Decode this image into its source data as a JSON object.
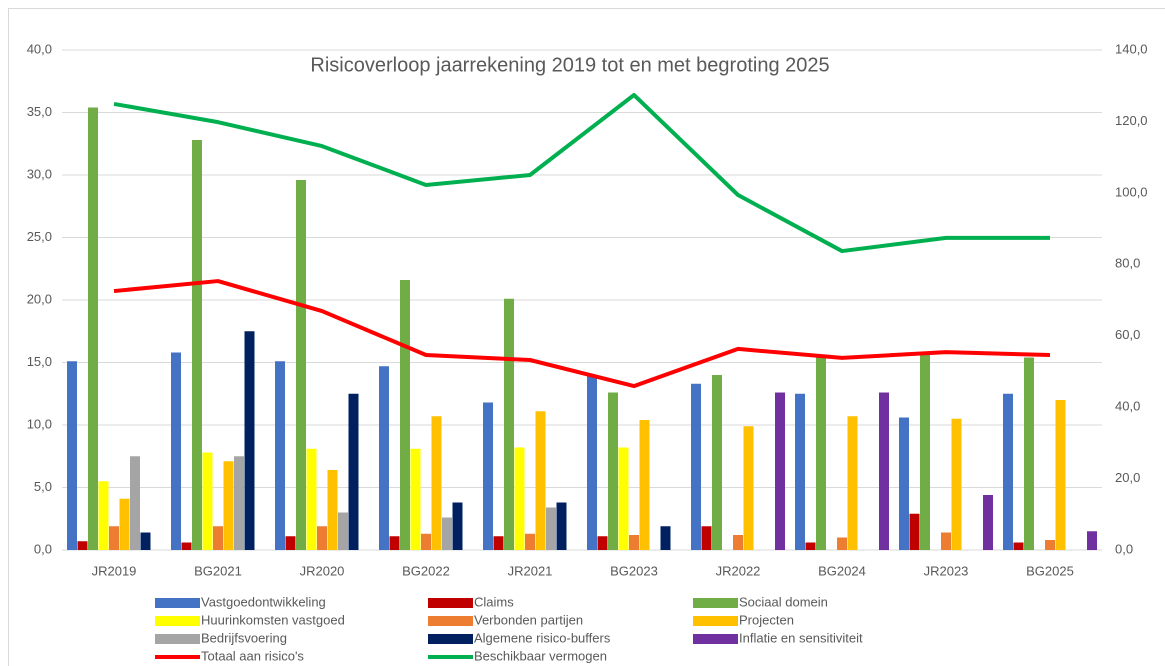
{
  "chart_data": {
    "type": "bar",
    "title": "Risicoverloop jaarrekening 2019 tot en met begroting 2025",
    "categories": [
      "JR2019",
      "BG2021",
      "JR2020",
      "BG2022",
      "JR2021",
      "BG2023",
      "JR2022",
      "BG2024",
      "JR2023",
      "BG2025"
    ],
    "ylim": [
      0,
      40
    ],
    "yticks": [
      {
        "value": 0,
        "label": "0,0"
      },
      {
        "value": 5,
        "label": "5,0"
      },
      {
        "value": 10,
        "label": "10,0"
      },
      {
        "value": 15,
        "label": "15,0"
      },
      {
        "value": 20,
        "label": "20,0"
      },
      {
        "value": 25,
        "label": "25,0"
      },
      {
        "value": 30,
        "label": "30,0"
      },
      {
        "value": 35,
        "label": "35,0"
      },
      {
        "value": 40,
        "label": "40,0"
      }
    ],
    "y2lim": [
      0,
      140
    ],
    "y2ticks": [
      {
        "value": 0,
        "label": "0,0"
      },
      {
        "value": 20,
        "label": "20,0"
      },
      {
        "value": 40,
        "label": "40,0"
      },
      {
        "value": 60,
        "label": "60,0"
      },
      {
        "value": 80,
        "label": "80,0"
      },
      {
        "value": 100,
        "label": "100,0"
      },
      {
        "value": 120,
        "label": "120,0"
      },
      {
        "value": 140,
        "label": "140,0"
      }
    ],
    "grid": true,
    "legend": "bottom",
    "series": [
      {
        "name": "Vastgoedontwikkeling",
        "color": "#4472c4",
        "values": [
          15.1,
          15.8,
          15.1,
          14.7,
          11.8,
          13.9,
          13.3,
          12.5,
          10.6,
          12.5
        ]
      },
      {
        "name": "Claims",
        "color": "#c00000",
        "values": [
          0.7,
          0.6,
          1.1,
          1.1,
          1.1,
          1.1,
          1.9,
          0.6,
          2.9,
          0.6
        ]
      },
      {
        "name": "Sociaal domein",
        "color": "#70ad47",
        "values": [
          35.4,
          32.8,
          29.6,
          21.6,
          20.1,
          12.6,
          14.0,
          15.5,
          15.6,
          15.4
        ]
      },
      {
        "name": "Huurinkomsten vastgoed",
        "color": "#ffff00",
        "values": [
          5.5,
          7.8,
          8.1,
          8.1,
          8.2,
          8.2,
          null,
          null,
          null,
          null
        ]
      },
      {
        "name": "Verbonden partijen",
        "color": "#ed7d31",
        "values": [
          1.9,
          1.9,
          1.9,
          1.3,
          1.3,
          1.2,
          1.2,
          1.0,
          1.4,
          0.8
        ]
      },
      {
        "name": "Projecten",
        "color": "#ffc000",
        "values": [
          4.1,
          7.1,
          6.4,
          10.7,
          11.1,
          10.4,
          9.9,
          10.7,
          10.5,
          12.0
        ]
      },
      {
        "name": "Bedrijfsvoering",
        "color": "#a5a5a5",
        "values": [
          7.5,
          7.5,
          3.0,
          2.6,
          3.4,
          null,
          null,
          null,
          null,
          null
        ]
      },
      {
        "name": "Algemene risico-buffers",
        "color": "#002060",
        "values": [
          1.4,
          17.5,
          12.5,
          3.8,
          3.8,
          1.9,
          null,
          null,
          null,
          null
        ]
      },
      {
        "name": "Inflatie en sensitiviteit",
        "color": "#7030a0",
        "values": [
          null,
          null,
          null,
          null,
          null,
          null,
          12.6,
          12.6,
          4.4,
          1.5
        ]
      },
      {
        "name": "Totaal aan risico's",
        "color": "#ff0000",
        "type": "line",
        "axis": "y2",
        "values": [
          72.5,
          75.3,
          66.9,
          54.6,
          53.2,
          45.9,
          56.3,
          53.8,
          55.4,
          54.6
        ]
      },
      {
        "name": "Beschikbaar vermogen",
        "color": "#00b050",
        "type": "line",
        "axis": "y2",
        "values": [
          124.9,
          119.8,
          113.1,
          102.2,
          105.0,
          127.4,
          99.4,
          83.7,
          87.4,
          87.4
        ]
      }
    ]
  }
}
